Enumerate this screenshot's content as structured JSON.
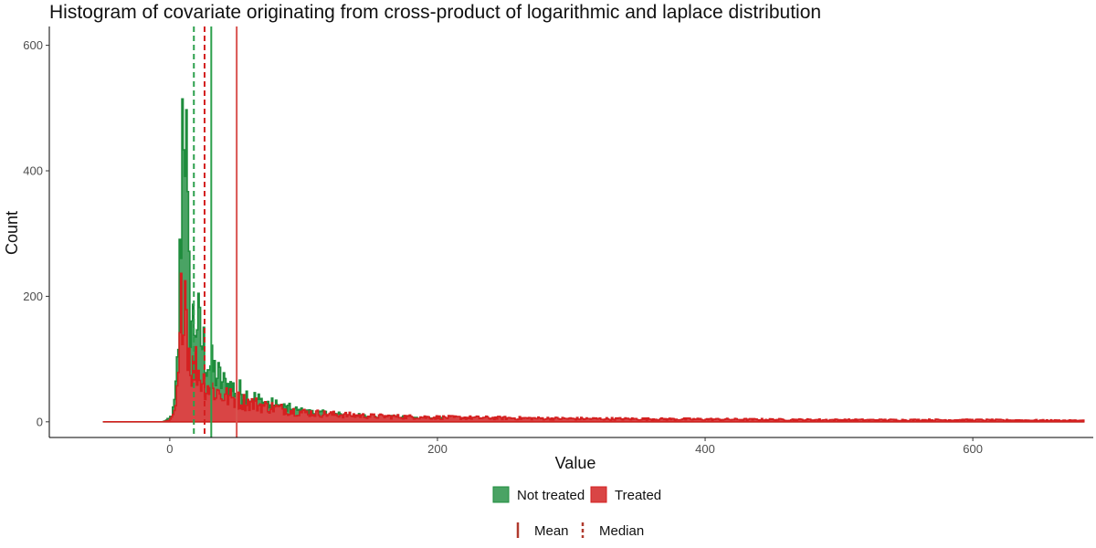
{
  "chart_data": {
    "type": "histogram",
    "title": "Histogram of covariate originating from cross-product of logarithmic and laplace distribution",
    "xlabel": "Value",
    "ylabel": "Count",
    "xlim": [
      -90,
      690
    ],
    "ylim": [
      -25,
      630
    ],
    "x_ticks": [
      0,
      200,
      400,
      600
    ],
    "y_ticks": [
      0,
      200,
      400,
      600
    ],
    "grid": false,
    "legend_position": "bottom",
    "series": [
      {
        "name": "Not treated",
        "color": "#1e8c3c",
        "fill": "#4aa364",
        "profile": [
          [
            -50,
            0
          ],
          [
            -5,
            0
          ],
          [
            0,
            5
          ],
          [
            3,
            20
          ],
          [
            5,
            60
          ],
          [
            7,
            160
          ],
          [
            8,
            300
          ],
          [
            9,
            420
          ],
          [
            10,
            540
          ],
          [
            11,
            600
          ],
          [
            12,
            460
          ],
          [
            13,
            330
          ],
          [
            14,
            220
          ],
          [
            16,
            170
          ],
          [
            18,
            150
          ],
          [
            20,
            175
          ],
          [
            22,
            140
          ],
          [
            25,
            120
          ],
          [
            30,
            90
          ],
          [
            35,
            75
          ],
          [
            40,
            60
          ],
          [
            45,
            55
          ],
          [
            50,
            50
          ],
          [
            60,
            40
          ],
          [
            70,
            30
          ],
          [
            80,
            25
          ],
          [
            90,
            20
          ],
          [
            100,
            15
          ],
          [
            120,
            12
          ],
          [
            150,
            8
          ],
          [
            200,
            5
          ],
          [
            250,
            3
          ],
          [
            300,
            2
          ],
          [
            400,
            1
          ],
          [
            500,
            1
          ],
          [
            600,
            1
          ],
          [
            680,
            0
          ]
        ]
      },
      {
        "name": "Treated",
        "color": "#d42020",
        "fill": "#d94545",
        "profile": [
          [
            -50,
            0
          ],
          [
            -5,
            0
          ],
          [
            0,
            2
          ],
          [
            3,
            10
          ],
          [
            5,
            30
          ],
          [
            7,
            80
          ],
          [
            8,
            150
          ],
          [
            9,
            200
          ],
          [
            10,
            240
          ],
          [
            11,
            260
          ],
          [
            12,
            200
          ],
          [
            14,
            120
          ],
          [
            16,
            90
          ],
          [
            18,
            80
          ],
          [
            20,
            95
          ],
          [
            22,
            75
          ],
          [
            25,
            65
          ],
          [
            30,
            55
          ],
          [
            35,
            48
          ],
          [
            40,
            42
          ],
          [
            45,
            38
          ],
          [
            50,
            35
          ],
          [
            60,
            30
          ],
          [
            70,
            25
          ],
          [
            80,
            22
          ],
          [
            90,
            18
          ],
          [
            100,
            15
          ],
          [
            120,
            12
          ],
          [
            150,
            9
          ],
          [
            200,
            7
          ],
          [
            250,
            6
          ],
          [
            300,
            5
          ],
          [
            400,
            4
          ],
          [
            500,
            3
          ],
          [
            600,
            3
          ],
          [
            680,
            2
          ]
        ]
      }
    ],
    "reference_lines": [
      {
        "series": "Not treated",
        "stat": "Mean",
        "value": 31,
        "color": "#2ca04c",
        "dashed": false
      },
      {
        "series": "Not treated",
        "stat": "Median",
        "value": 18,
        "color": "#2ca04c",
        "dashed": true
      },
      {
        "series": "Treated",
        "stat": "Mean",
        "value": 50,
        "color": "#d9534f",
        "dashed": false
      },
      {
        "series": "Treated",
        "stat": "Median",
        "value": 26,
        "color": "#d42020",
        "dashed": true
      }
    ],
    "legend_fill": {
      "items": [
        {
          "label": "Not treated",
          "color": "#4aa364",
          "border": "#1e8c3c"
        },
        {
          "label": "Treated",
          "color": "#d94545",
          "border": "#d42020"
        }
      ]
    },
    "legend_lines": {
      "items": [
        {
          "label": "Mean",
          "color": "#b03a2e",
          "dashed": false
        },
        {
          "label": "Median",
          "color": "#b03a2e",
          "dashed": true
        }
      ]
    }
  }
}
